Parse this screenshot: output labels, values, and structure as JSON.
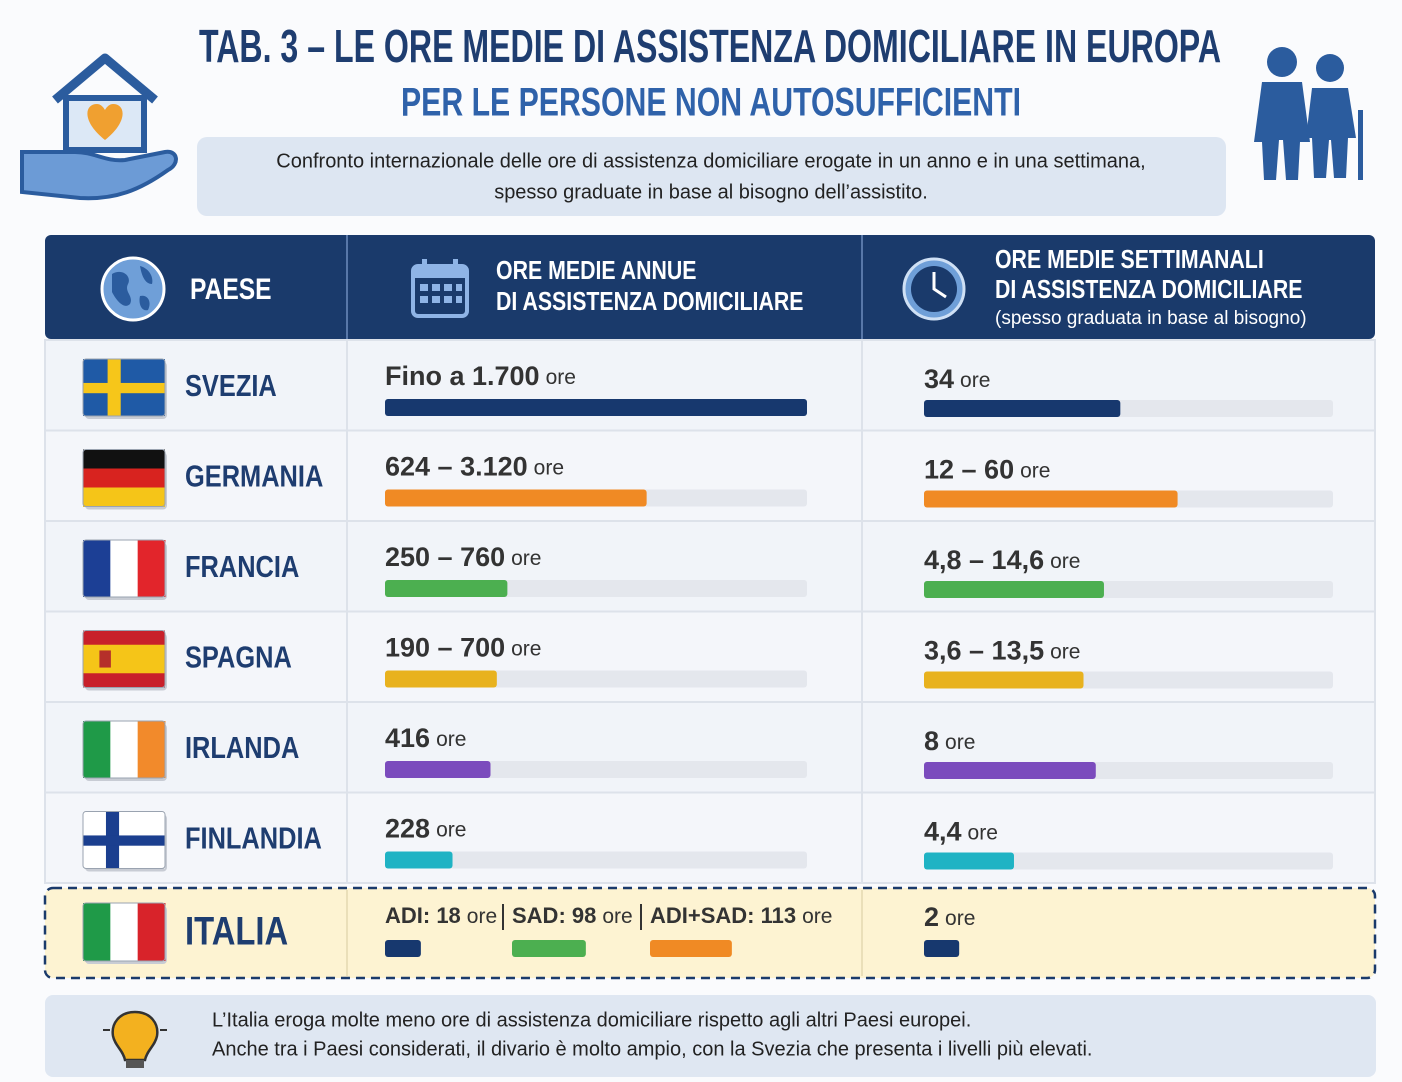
{
  "header": {
    "title": "TAB. 3 – LE ORE MEDIE DI ASSISTENZA DOMICILIARE IN EUROPA",
    "subtitle": "PER LE PERSONE NON AUTOSUFFICIENTI",
    "description": [
      "Confronto internazionale delle ore di assistenza domiciliare erogate in un anno e in una settimana,",
      "spesso graduate in base al bisogno dell’assistito."
    ]
  },
  "table": {
    "columns": [
      {
        "label": [
          "PAESE"
        ]
      },
      {
        "label": [
          "ORE MEDIE ANNUE",
          "DI ASSISTENZA DOMICILIARE"
        ]
      },
      {
        "label": [
          "ORE MEDIE SETTIMANALI",
          "DI ASSISTENZA DOMICILIARE"
        ],
        "note": "(spesso graduata in base al bisogno)"
      }
    ],
    "rows": [
      {
        "country": "SVEZIA",
        "color": "#17386e",
        "annual": {
          "value": "Fino a 1.700",
          "unit": "ore",
          "bar": 100
        },
        "weekly": {
          "value": "34",
          "unit": "ore",
          "bar": 48
        }
      },
      {
        "country": "GERMANIA",
        "color": "#f08a24",
        "annual": {
          "value": "624 – 3.120",
          "unit": "ore",
          "bar": 62
        },
        "weekly": {
          "value": "12 – 60",
          "unit": "ore",
          "bar": 62
        }
      },
      {
        "country": "FRANCIA",
        "color": "#4caf50",
        "annual": {
          "value": "250 – 760",
          "unit": "ore",
          "bar": 29
        },
        "weekly": {
          "value": "4,8 – 14,6",
          "unit": "ore",
          "bar": 44
        }
      },
      {
        "country": "SPAGNA",
        "color": "#e8b21e",
        "annual": {
          "value": "190 – 700",
          "unit": "ore",
          "bar": 26.5
        },
        "weekly": {
          "value": "3,6 – 13,5",
          "unit": "ore",
          "bar": 39
        }
      },
      {
        "country": "IRLANDA",
        "color": "#7b4bbd",
        "annual": {
          "value": "416",
          "unit": "ore",
          "bar": 25
        },
        "weekly": {
          "value": "8",
          "unit": "ore",
          "bar": 42
        }
      },
      {
        "country": "FINLANDIA",
        "color": "#1fb3c4",
        "annual": {
          "value": "228",
          "unit": "ore",
          "bar": 16
        },
        "weekly": {
          "value": "4,4",
          "unit": "ore",
          "bar": 22
        }
      }
    ],
    "italia": {
      "country": "ITALIA",
      "annual": [
        {
          "value": "ADI: 18",
          "unit": "ore",
          "bar": 8.5,
          "color": "#17386e"
        },
        {
          "value": "SAD: 98",
          "unit": "ore",
          "bar": 17.5,
          "color": "#4caf50"
        },
        {
          "value": "ADI+SAD: 113",
          "unit": "ore",
          "bar": 19.4,
          "color": "#f08a24"
        }
      ],
      "weekly": {
        "value": "2",
        "unit": "ore",
        "bar": 8.6,
        "color": "#17386e"
      }
    }
  },
  "note": [
    "L’Italia eroga molte meno ore di assistenza domiciliare rispetto agli altri Paesi europei.",
    "Anche tra i Paesi considerati, il divario è molto ampio, con la Svezia che presenta i livelli più elevati."
  ]
}
